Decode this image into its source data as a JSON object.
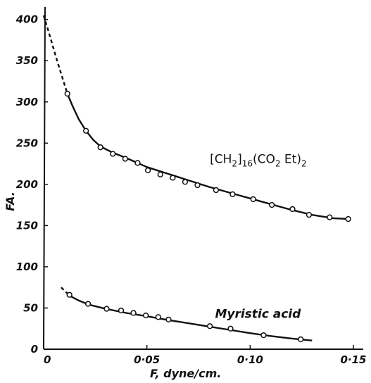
{
  "chart_data": {
    "type": "scatter",
    "xlabel": "F, dyne/cm.",
    "ylabel": "FA.",
    "xlim": [
      0,
      0.15
    ],
    "ylim": [
      0,
      410
    ],
    "x_ticks": [
      {
        "value": 0,
        "label": "0"
      },
      {
        "value": 0.05,
        "label": "0·05"
      },
      {
        "value": 0.1,
        "label": "0·10"
      },
      {
        "value": 0.15,
        "label": "0·15"
      }
    ],
    "y_ticks": [
      {
        "value": 0,
        "label": "0"
      },
      {
        "value": 50,
        "label": "50"
      },
      {
        "value": 100,
        "label": "100"
      },
      {
        "value": 150,
        "label": "150"
      },
      {
        "value": 200,
        "label": "200"
      },
      {
        "value": 250,
        "label": "250"
      },
      {
        "value": 300,
        "label": "300"
      },
      {
        "value": 350,
        "label": "350"
      },
      {
        "value": 400,
        "label": "400"
      }
    ],
    "grid": false,
    "series": [
      {
        "name": "[CH2]16(CO2Et)2",
        "label_parts": {
          "pre": "[CH",
          "s1": "2",
          "mid": "]",
          "s2": "16",
          "mid2": "(CO",
          "s3": "2",
          "mid3": " Et)",
          "s4": "2"
        },
        "label_at": [
          0.0805,
          226
        ],
        "points": [
          [
            0.0115,
            310
          ],
          [
            0.0205,
            265
          ],
          [
            0.0275,
            245
          ],
          [
            0.0335,
            237
          ],
          [
            0.0395,
            231
          ],
          [
            0.0455,
            226
          ],
          [
            0.0505,
            217
          ],
          [
            0.0565,
            212
          ],
          [
            0.0625,
            208
          ],
          [
            0.0685,
            203
          ],
          [
            0.0745,
            199
          ],
          [
            0.0835,
            193
          ],
          [
            0.0915,
            188
          ],
          [
            0.1015,
            182
          ],
          [
            0.1105,
            175
          ],
          [
            0.1205,
            170
          ],
          [
            0.1285,
            163
          ],
          [
            0.1385,
            160
          ],
          [
            0.1475,
            158
          ]
        ],
        "curve": [
          [
            0.0115,
            310
          ],
          [
            0.014,
            295
          ],
          [
            0.017,
            279
          ],
          [
            0.0205,
            265
          ],
          [
            0.024,
            254
          ],
          [
            0.0275,
            246
          ],
          [
            0.033,
            239
          ],
          [
            0.04,
            232
          ],
          [
            0.05,
            221
          ],
          [
            0.06,
            213
          ],
          [
            0.07,
            205
          ],
          [
            0.08,
            197
          ],
          [
            0.09,
            190
          ],
          [
            0.1,
            183
          ],
          [
            0.11,
            176
          ],
          [
            0.12,
            169
          ],
          [
            0.13,
            163
          ],
          [
            0.14,
            159
          ],
          [
            0.1475,
            158
          ]
        ],
        "extrapolated": [
          [
            0,
            405
          ],
          [
            0.003,
            380
          ],
          [
            0.0065,
            350
          ],
          [
            0.009,
            330
          ],
          [
            0.0115,
            310
          ]
        ]
      },
      {
        "name": "Myristic acid",
        "label_at": [
          0.083,
          38
        ],
        "points": [
          [
            0.0125,
            66
          ],
          [
            0.0215,
            55
          ],
          [
            0.0305,
            49
          ],
          [
            0.0375,
            47
          ],
          [
            0.0435,
            44
          ],
          [
            0.0495,
            41
          ],
          [
            0.0555,
            39
          ],
          [
            0.0605,
            36
          ],
          [
            0.0805,
            28
          ],
          [
            0.0905,
            25
          ],
          [
            0.1065,
            17
          ],
          [
            0.1245,
            12
          ]
        ],
        "curve": [
          [
            0.0125,
            65
          ],
          [
            0.017,
            59
          ],
          [
            0.022,
            54
          ],
          [
            0.03,
            49
          ],
          [
            0.04,
            44
          ],
          [
            0.05,
            40
          ],
          [
            0.06,
            35.5
          ],
          [
            0.07,
            31.5
          ],
          [
            0.08,
            27.5
          ],
          [
            0.09,
            23.5
          ],
          [
            0.1,
            19.5
          ],
          [
            0.11,
            16
          ],
          [
            0.12,
            13
          ],
          [
            0.13,
            10.5
          ]
        ],
        "extrapolated": [
          [
            0.0085,
            75
          ],
          [
            0.0125,
            65
          ]
        ]
      }
    ]
  }
}
